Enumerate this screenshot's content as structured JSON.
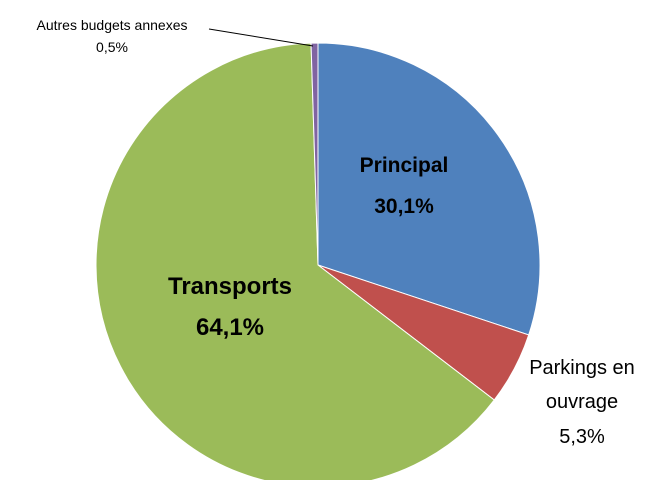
{
  "chart_data": {
    "type": "pie",
    "title": "",
    "slices": [
      {
        "name": "Principal",
        "percent_label": "30,1%",
        "value": 30.1,
        "color": "#4f81bd"
      },
      {
        "name": "Parkings en ouvrage",
        "name_lines": [
          "Parkings en",
          "ouvrage"
        ],
        "percent_label": "5,3%",
        "value": 5.3,
        "color": "#c0504d"
      },
      {
        "name": "Transports",
        "percent_label": "64,1%",
        "value": 64.1,
        "color": "#9bbb59"
      },
      {
        "name": "Autres budgets annexes",
        "percent_label": "0,5%",
        "value": 0.5,
        "color": "#8064a2"
      }
    ]
  }
}
